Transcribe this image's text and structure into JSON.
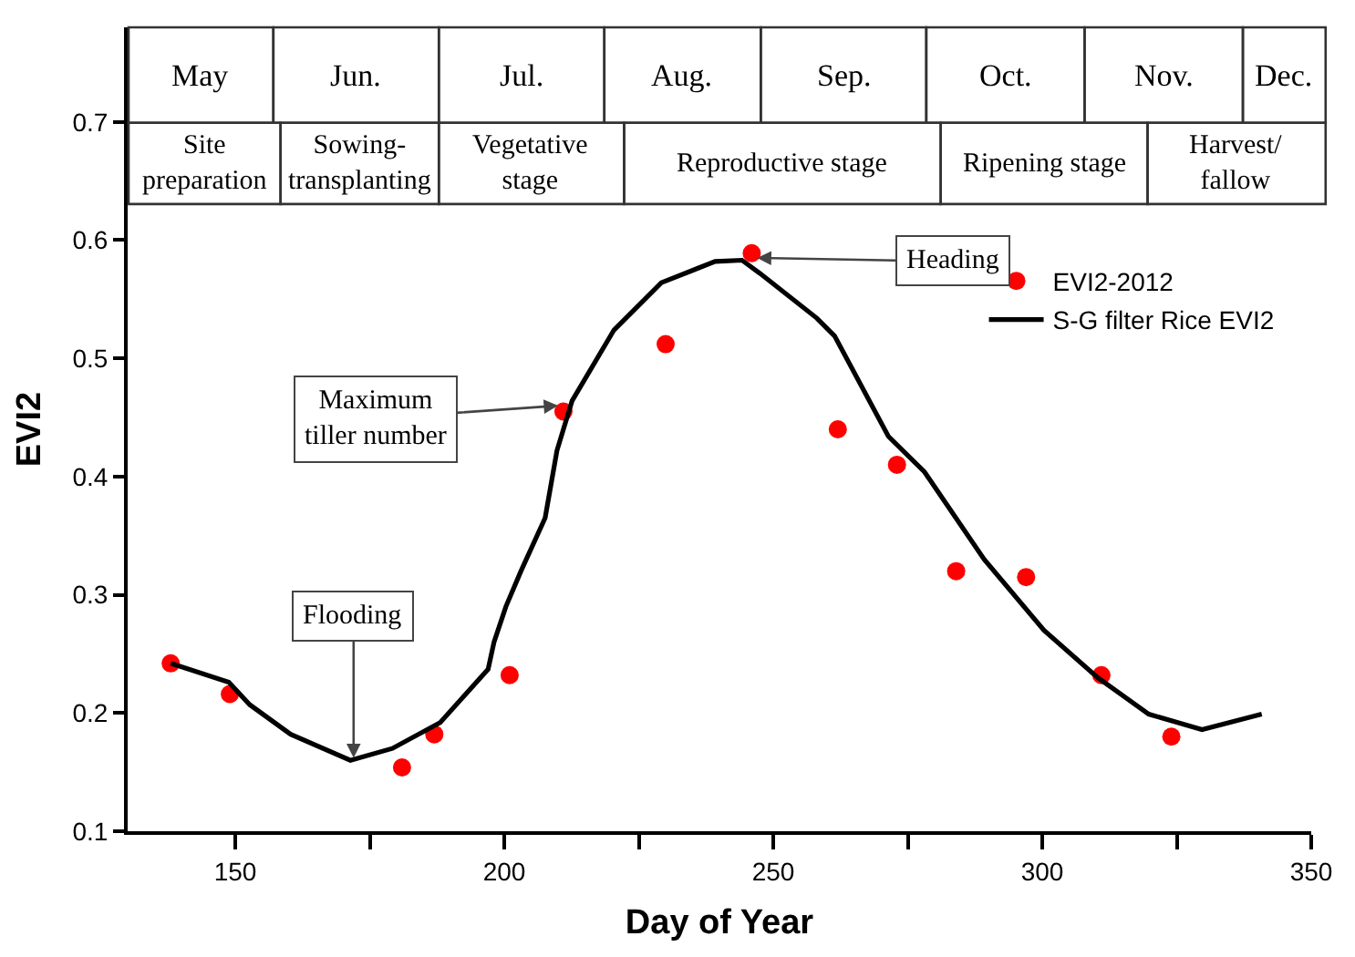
{
  "chart_data": {
    "type": "scatter",
    "xlabel": "Day of Year",
    "ylabel": "EVI2",
    "xlim": [
      130,
      350
    ],
    "ylim": [
      0.1,
      0.78
    ],
    "xticks": [
      150,
      {
        "value": 175,
        "label": null
      },
      200,
      {
        "value": 225,
        "label": null
      },
      250,
      {
        "value": 275,
        "label": null
      },
      300,
      {
        "value": 325,
        "label": null
      },
      350
    ],
    "yticks": [
      0.1,
      0.2,
      0.3,
      0.4,
      0.5,
      0.6,
      0.7
    ],
    "series": [
      {
        "name": "EVI2-2012",
        "color": "#ff0000",
        "marker": "circle",
        "x": [
          138,
          149,
          181,
          187,
          201,
          211,
          230,
          246,
          262,
          273,
          284,
          297,
          311,
          324
        ],
        "values": [
          0.242,
          0.216,
          0.154,
          0.182,
          0.232,
          0.455,
          0.512,
          0.589,
          0.44,
          0.41,
          0.32,
          0.315,
          0.232,
          0.18
        ]
      },
      {
        "name": "S-G filter Rice EVI2",
        "type": "line",
        "color": "#000000",
        "line_style": "solid",
        "x": [
          138,
          148.8,
          152.7,
          160.3,
          171.4,
          179.2,
          188.1,
          197,
          198.1,
          200.3,
          203.1,
          207.6,
          209.8,
          212.6,
          220.4,
          229.2,
          239.2,
          244.2,
          247.5,
          258.1,
          261.4,
          271.4,
          278.1,
          289.2,
          300.3,
          310.3,
          319.8,
          329.7,
          340.8
        ],
        "values": [
          0.242,
          0.226,
          0.207,
          0.182,
          0.16,
          0.17,
          0.192,
          0.237,
          0.26,
          0.29,
          0.32,
          0.365,
          0.422,
          0.464,
          0.524,
          0.564,
          0.582,
          0.583,
          0.572,
          0.534,
          0.519,
          0.434,
          0.404,
          0.33,
          0.27,
          0.23,
          0.199,
          0.186,
          0.199
        ]
      }
    ],
    "annotations": [
      {
        "text": "Flooding",
        "x": 172,
        "y": 0.162
      },
      {
        "text": "Maximum\ntiller number",
        "x": 210,
        "y": 0.46
      },
      {
        "text": "Heading",
        "x": 247,
        "y": 0.585
      },
      "May",
      "Jun.",
      "Jul.",
      "Aug.",
      "Sep.",
      "Oct.",
      "Nov.",
      "Dec.",
      "Site\npreparation",
      "Sowing-\ntransplanting",
      "Vegetative\nstage",
      "Reproductive stage",
      "Ripening stage",
      "Harvest/\nfallow"
    ],
    "legend": "right"
  }
}
